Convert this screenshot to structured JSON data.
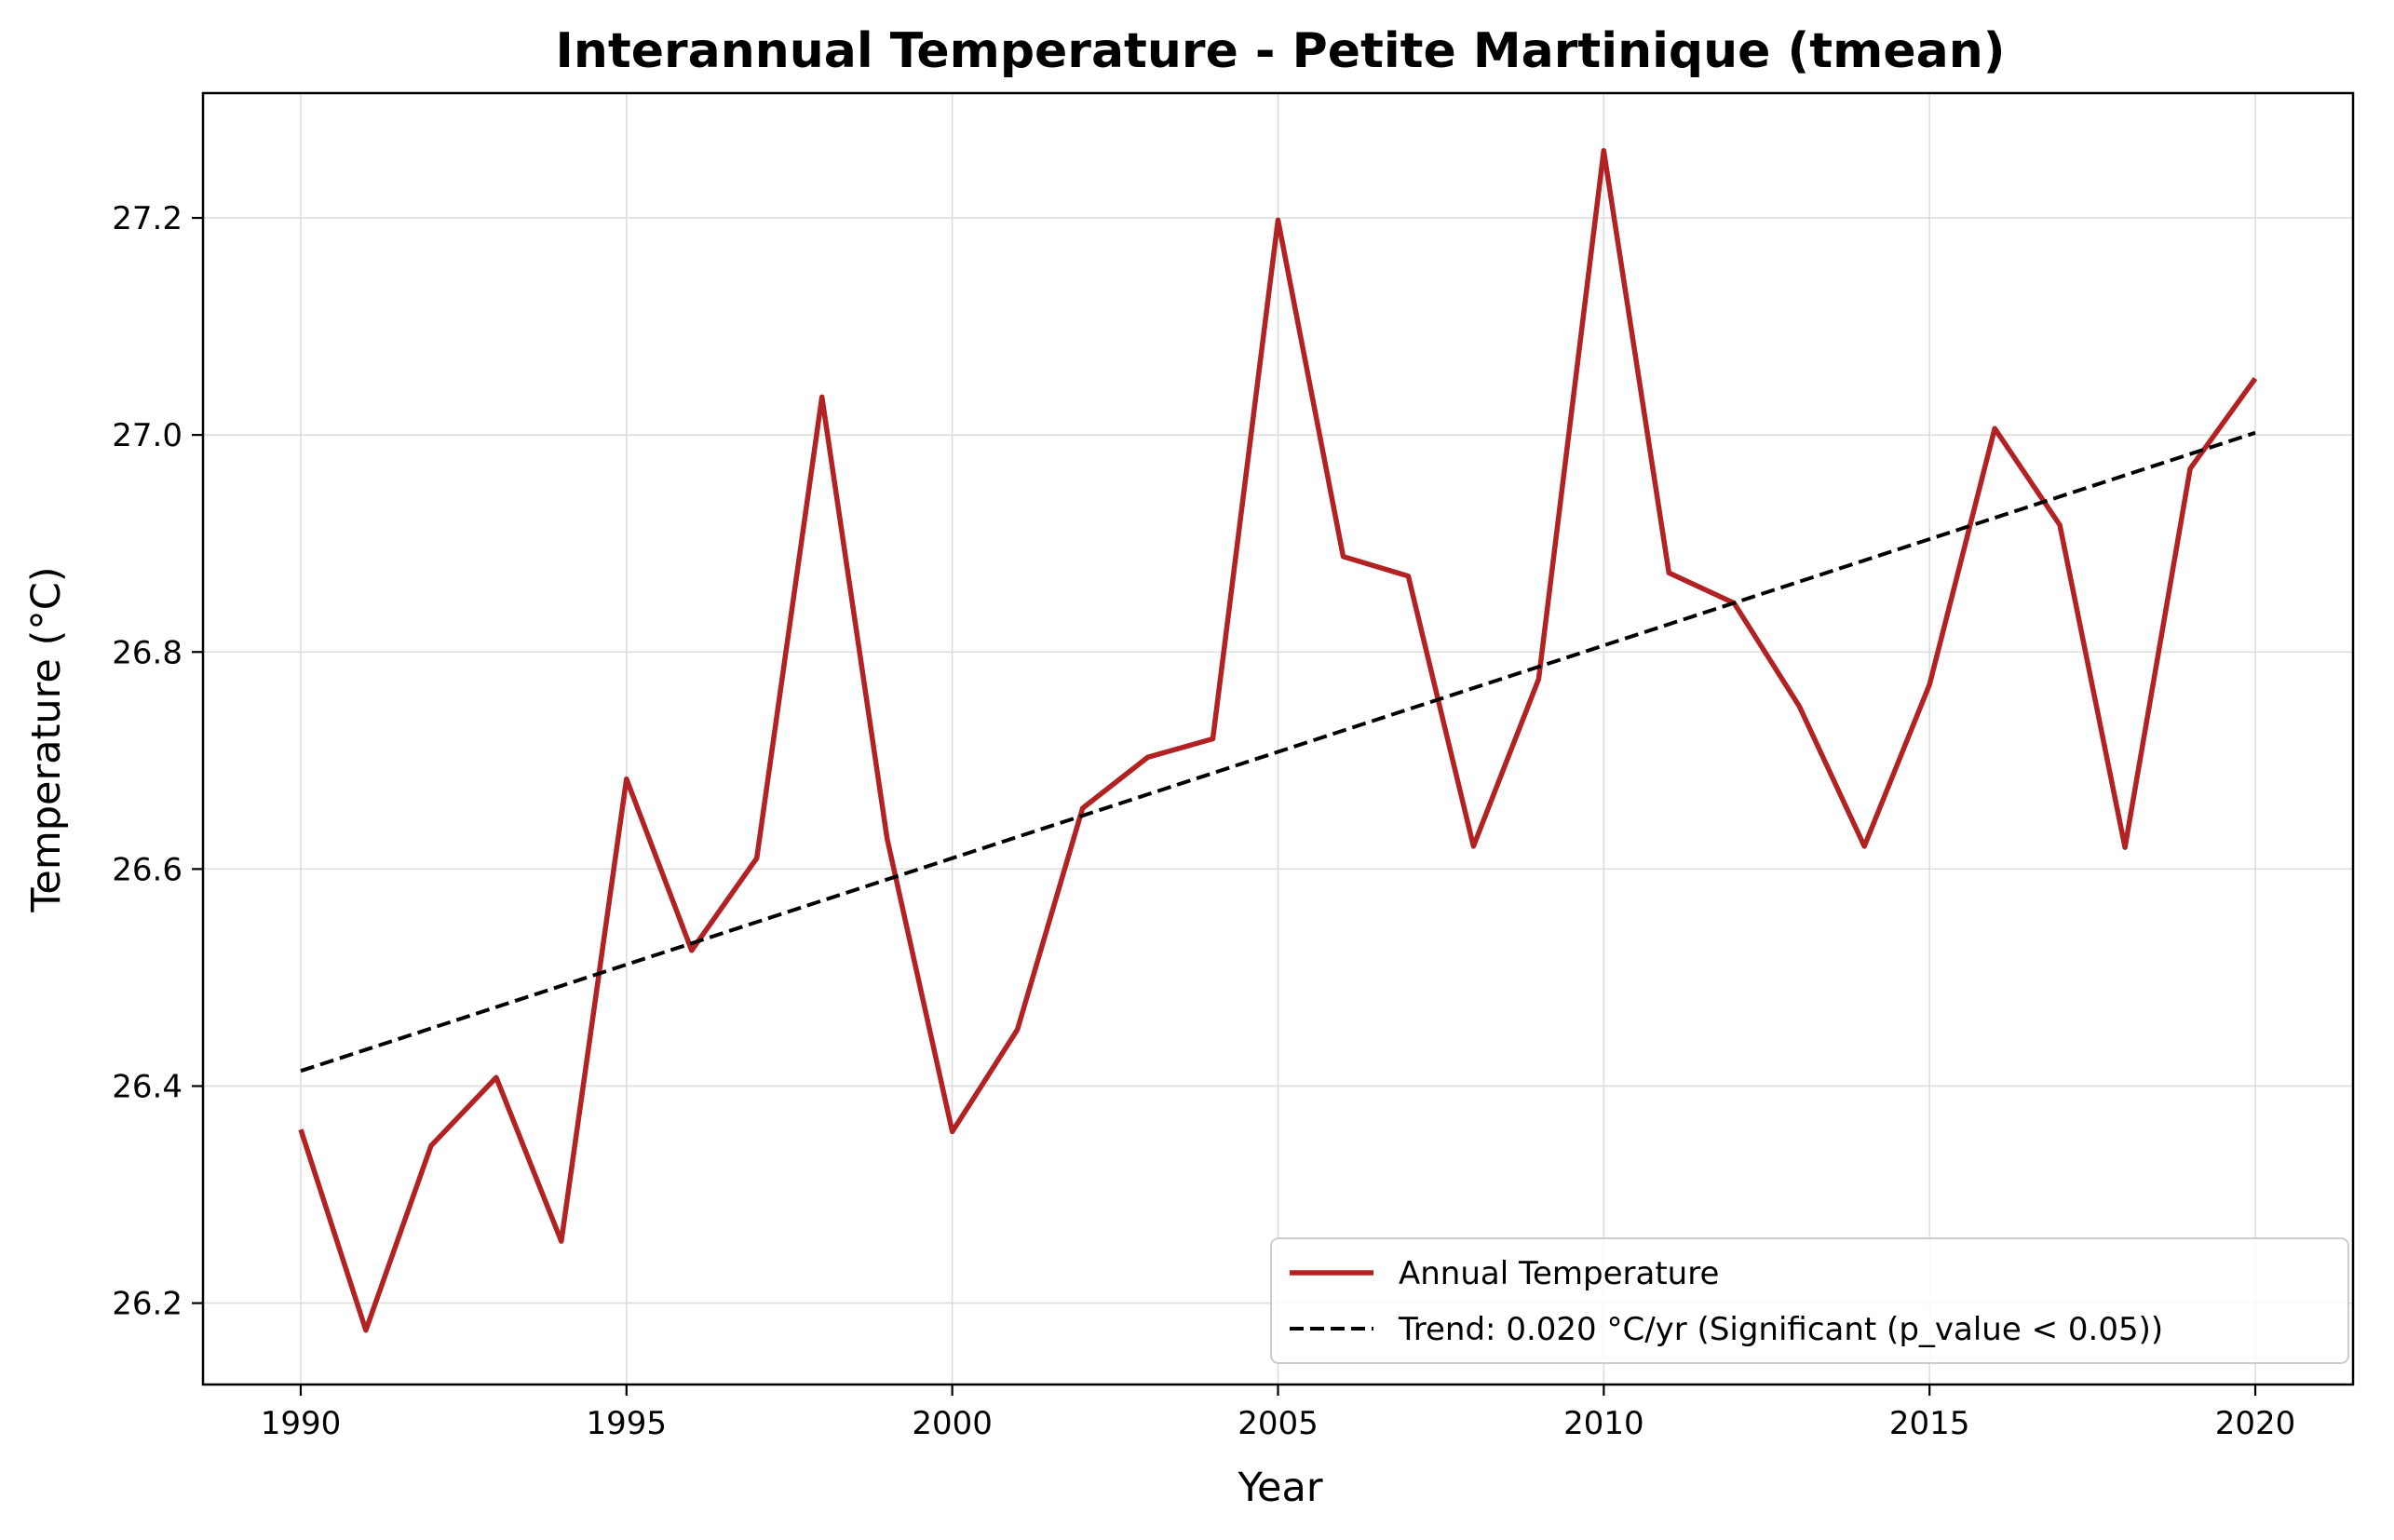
{
  "chart_data": {
    "type": "line",
    "title": "Interannual Temperature - Petite Martinique (tmean)",
    "xlabel": "Year",
    "ylabel": "Temperature (°C)",
    "xlim": [
      1988.5,
      2021.5
    ],
    "ylim": [
      26.125,
      27.315
    ],
    "x_ticks": [
      1990,
      1995,
      2000,
      2005,
      2010,
      2015,
      2020
    ],
    "x_tick_labels": [
      "1990",
      "1995",
      "2000",
      "2005",
      "2010",
      "2015",
      "2020"
    ],
    "y_ticks": [
      26.2,
      26.4,
      26.6,
      26.8,
      27.0,
      27.2
    ],
    "y_tick_labels": [
      "26.2",
      "26.4",
      "26.6",
      "26.8",
      "27.0",
      "27.2"
    ],
    "grid": true,
    "legend_position": "lower-right",
    "series": [
      {
        "name": "Annual Temperature",
        "color": "#b22222",
        "style": "solid",
        "x": [
          1990,
          1991,
          1992,
          1993,
          1994,
          1995,
          1996,
          1997,
          1998,
          1999,
          2000,
          2001,
          2002,
          2003,
          2004,
          2005,
          2006,
          2007,
          2008,
          2009,
          2010,
          2011,
          2012,
          2013,
          2014,
          2015,
          2016,
          2017,
          2018,
          2019,
          2020
        ],
        "values": [
          26.36,
          26.175,
          26.345,
          26.408,
          26.257,
          26.683,
          26.525,
          26.61,
          27.035,
          26.628,
          26.358,
          26.452,
          26.656,
          26.703,
          26.72,
          27.198,
          26.888,
          26.87,
          26.621,
          26.775,
          27.262,
          26.873,
          26.845,
          26.75,
          26.621,
          26.77,
          27.006,
          26.917,
          26.62,
          26.969,
          27.052
        ]
      },
      {
        "name": "Trend: 0.020 °C/yr (Significant (p_value < 0.05))",
        "color": "#000000",
        "style": "dashed",
        "x": [
          1990,
          2020
        ],
        "values": [
          26.414,
          27.002
        ]
      }
    ]
  }
}
